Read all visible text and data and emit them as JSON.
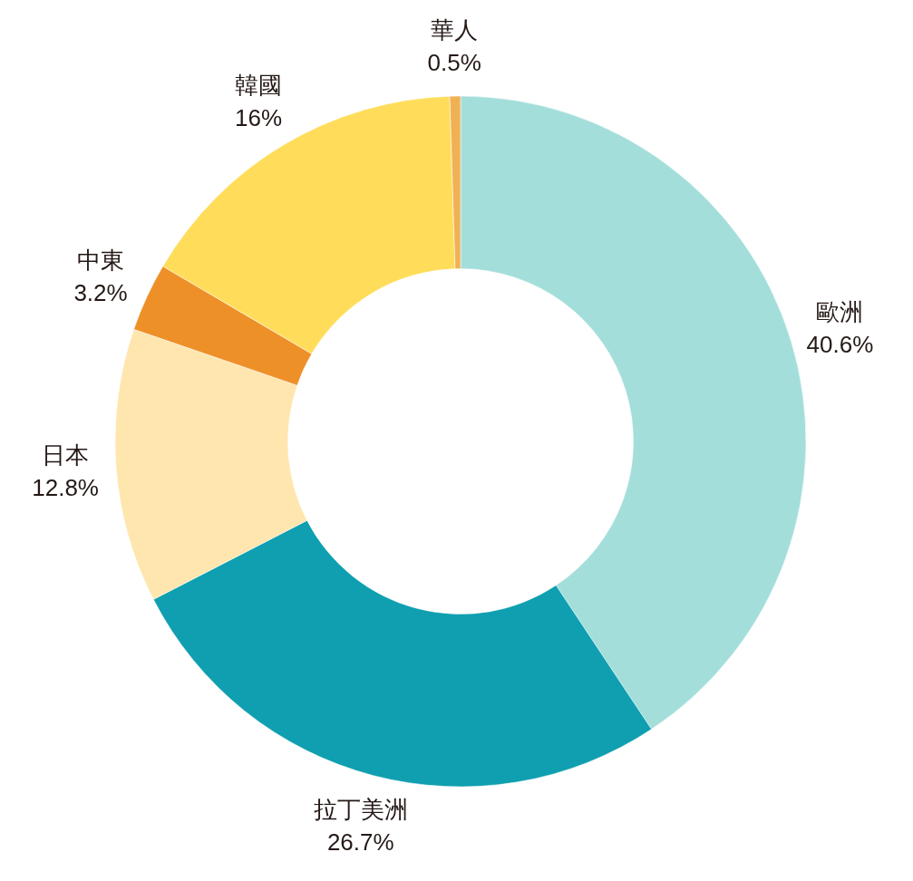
{
  "chart_data": {
    "type": "donut",
    "categories": [
      "歐洲",
      "拉丁美洲",
      "日本",
      "中東",
      "韓國",
      "華人"
    ],
    "values": [
      40.6,
      26.7,
      12.8,
      3.2,
      16,
      0.5
    ],
    "value_labels": [
      "40.6%",
      "26.7%",
      "12.8%",
      "3.2%",
      "16%",
      "0.5%"
    ],
    "colors": [
      "#a4dedb",
      "#0f9fb0",
      "#fee6ae",
      "#ee9028",
      "#ffdd5b",
      "#f0b155"
    ]
  }
}
